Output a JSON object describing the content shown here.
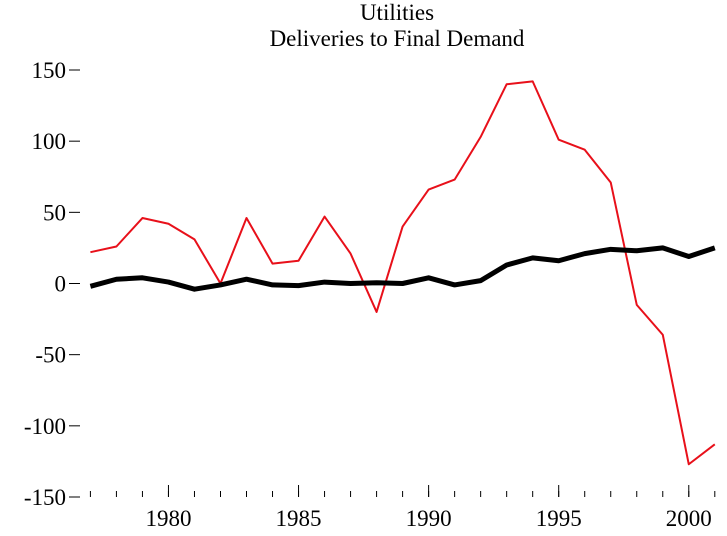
{
  "chart_data": {
    "type": "line",
    "title": "Utilities",
    "subtitle": "Deliveries to Final Demand",
    "x": [
      1977,
      1978,
      1979,
      1980,
      1981,
      1982,
      1983,
      1984,
      1985,
      1986,
      1987,
      1988,
      1989,
      1990,
      1991,
      1992,
      1993,
      1994,
      1995,
      1996,
      1997,
      1998,
      1999,
      2000,
      2001
    ],
    "series": [
      {
        "color": "#e8101a",
        "width": 2,
        "values": [
          22,
          26,
          46,
          42,
          31,
          0,
          46,
          14,
          16,
          47,
          21,
          -20,
          40,
          66,
          73,
          103,
          140,
          142,
          101,
          94,
          71,
          -15,
          -36,
          -127,
          -113
        ]
      },
      {
        "color": "#000000",
        "width": 5,
        "values": [
          -2,
          3,
          4,
          1,
          -4,
          -1,
          3,
          -1,
          -1.5,
          1,
          0,
          0.5,
          0,
          4,
          -1,
          2,
          13,
          18,
          16,
          21,
          24,
          23,
          25,
          19,
          25
        ]
      }
    ],
    "xlim": [
      1976.6,
      2001.2
    ],
    "xticks": [
      1980,
      1985,
      1990,
      1995,
      2000
    ],
    "ylim": [
      -150,
      150
    ],
    "yticks": [
      -150,
      -100,
      -50,
      0,
      50,
      100,
      150
    ]
  }
}
